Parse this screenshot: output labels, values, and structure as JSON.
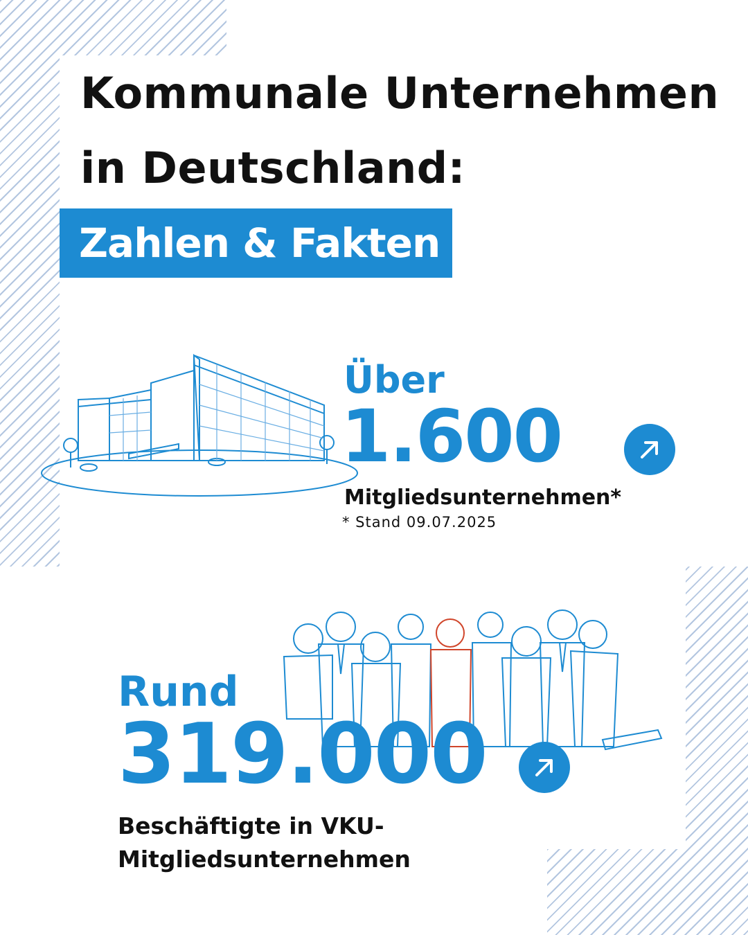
{
  "header": {
    "title_line1": "Kommunale Unternehmen",
    "title_line2": "in Deutschland:",
    "tag": "Zahlen & Fakten"
  },
  "fact_members": {
    "prefix": "Über",
    "value": "1.600",
    "label": "Mitgliedsunternehmen*",
    "footnote": "* Stand 09.07.2025",
    "icon": "arrow-up-right-icon",
    "illustration": "office-building-illustration"
  },
  "fact_employees": {
    "prefix": "Rund",
    "value": "319.000",
    "label_line1": "Beschäftigte in VKU-",
    "label_line2": "Mitgliedsunternehmen",
    "icon": "arrow-up-right-icon",
    "illustration": "people-group-illustration"
  },
  "colors": {
    "accent": "#1d8bd2",
    "text": "#111111",
    "hatch": "#b3c6e0",
    "highlight_person": "#d0452a"
  }
}
